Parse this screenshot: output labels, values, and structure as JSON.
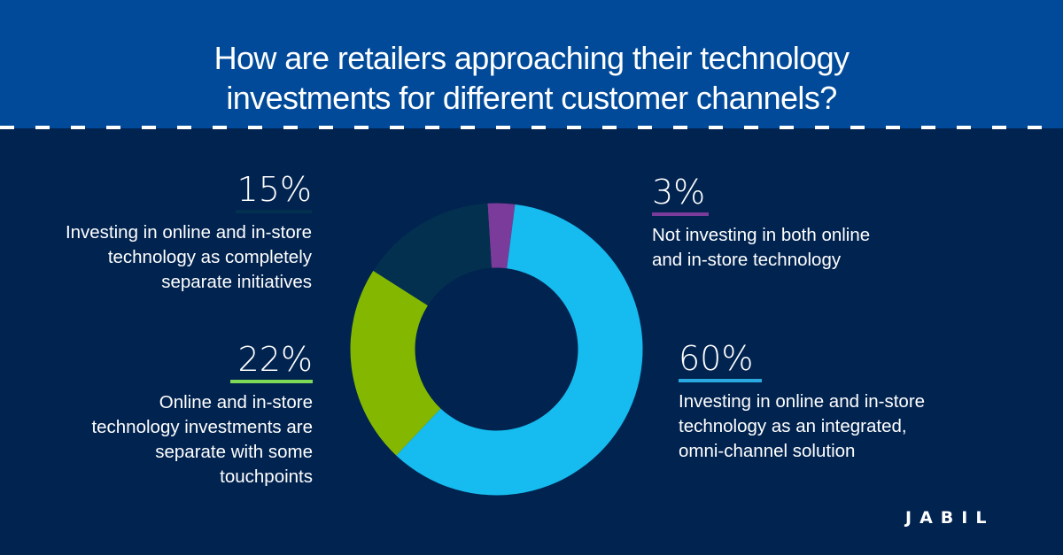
{
  "header": {
    "title_lines": [
      "How are retailers approaching their technology",
      "investments for different customer channels?"
    ]
  },
  "colors": {
    "header_bg": "#004a99",
    "body_bg": "#012350",
    "dash": "#ffffff"
  },
  "stats": {
    "separate": {
      "pct": "15%",
      "color": "#04304f",
      "desc_lines": [
        "Investing in online and in-store",
        "technology as completely",
        "separate initiatives"
      ]
    },
    "touchpoints": {
      "pct": "22%",
      "color": "#7ed957",
      "desc_lines": [
        "Online and in-store",
        "technology investments are",
        "separate with some",
        "touchpoints"
      ]
    },
    "not_investing": {
      "pct": "3%",
      "color": "#7a3b9a",
      "desc_lines": [
        "Not investing in both online",
        "and in-store technology"
      ]
    },
    "integrated": {
      "pct": "60%",
      "color": "#29a9e0",
      "desc_lines": [
        "Investing in online and in-store",
        "technology as an integrated,",
        "omni-channel solution"
      ]
    }
  },
  "logo": {
    "text": "JABIL"
  },
  "chart_data": {
    "type": "pie",
    "variant": "donut",
    "title": "How are retailers approaching their technology investments for different customer channels?",
    "categories": [
      "Not investing in both online and in-store technology",
      "Investing in online and in-store technology as an integrated, omni-channel solution",
      "Online and in-store technology investments are separate with some touchpoints",
      "Investing in online and in-store technology as completely separate initiatives"
    ],
    "values": [
      3,
      60,
      22,
      15
    ],
    "unit": "%",
    "colors": [
      "#7a3b9a",
      "#16bcef",
      "#84b800",
      "#04304f"
    ],
    "start_angle_deg": -3.5,
    "direction": "clockwise",
    "center": [
      560.5,
      394.5
    ],
    "outer_radius": 165,
    "inner_radius": 92,
    "legend": "callout labels around chart"
  }
}
